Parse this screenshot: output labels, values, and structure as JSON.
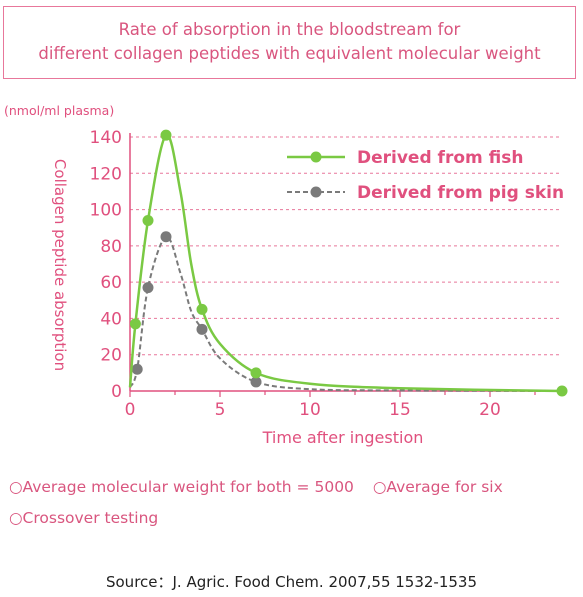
{
  "title_lines": [
    "Rate of absorption in the bloodstream for",
    "different collagen peptides with equivalent molecular weight"
  ],
  "notes": {
    "line1_a": "○Average molecular weight for both = 5000",
    "line1_b": "○Average for six",
    "line2": "○Crossover testing"
  },
  "source": "Source：J. Agric. Food Chem. 2007,55 1532-1535",
  "colors": {
    "accent": "#e0507e",
    "fish": "#7ac943",
    "pig": "#7a7a7a",
    "grid": "#e8779b",
    "border": "#e8779b"
  },
  "chart_data": {
    "type": "line",
    "unit_label": "(nmol/ml plasma)",
    "ylabel": "Collagen peptide absorption",
    "xlabel": "Time after ingestion",
    "xlim": [
      0,
      24
    ],
    "ylim": [
      0,
      140
    ],
    "xticks": [
      0,
      5,
      10,
      15,
      20
    ],
    "yticks": [
      0,
      20,
      40,
      60,
      80,
      100,
      120,
      140
    ],
    "grid": "horizontal dashed",
    "legend_position": "top-right",
    "series": [
      {
        "name": "Derived from fish",
        "color": "#7ac943",
        "style": "solid",
        "x": [
          0.3,
          1,
          2,
          4,
          7,
          24
        ],
        "y": [
          37,
          94,
          141,
          45,
          10,
          0
        ],
        "curve": [
          [
            0,
            2
          ],
          [
            0.3,
            37
          ],
          [
            1,
            94
          ],
          [
            2,
            141
          ],
          [
            2.8,
            110
          ],
          [
            3.4,
            70
          ],
          [
            4,
            45
          ],
          [
            5,
            26
          ],
          [
            7,
            10
          ],
          [
            10,
            4
          ],
          [
            15,
            1.5
          ],
          [
            24,
            0
          ]
        ]
      },
      {
        "name": "Derived from pig skin",
        "color": "#7a7a7a",
        "style": "dashed",
        "x": [
          0.4,
          1,
          2,
          4,
          7
        ],
        "y": [
          12,
          57,
          85,
          34,
          5
        ],
        "curve": [
          [
            0,
            2
          ],
          [
            0.4,
            12
          ],
          [
            1,
            57
          ],
          [
            2,
            85
          ],
          [
            2.8,
            65
          ],
          [
            3.4,
            44
          ],
          [
            4,
            34
          ],
          [
            5,
            18
          ],
          [
            7,
            5
          ],
          [
            10,
            1
          ],
          [
            15,
            0.3
          ],
          [
            24,
            0
          ]
        ]
      }
    ]
  }
}
